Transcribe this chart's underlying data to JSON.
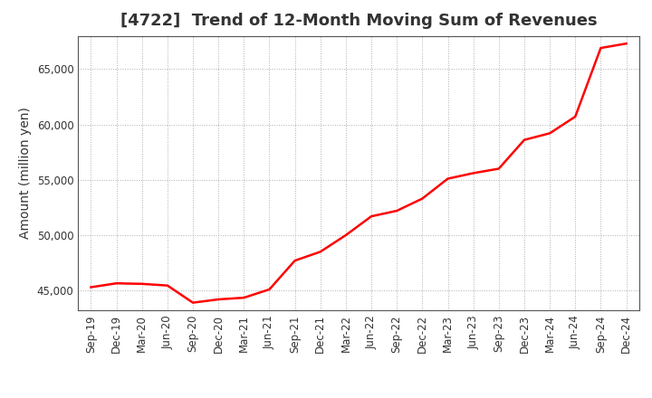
{
  "title": "[4722]  Trend of 12-Month Moving Sum of Revenues",
  "ylabel": "Amount (million yen)",
  "line_color": "#ff0000",
  "line_width": 1.8,
  "background_color": "#ffffff",
  "grid_color": "#999999",
  "x_labels": [
    "Sep-19",
    "Dec-19",
    "Mar-20",
    "Jun-20",
    "Sep-20",
    "Dec-20",
    "Mar-21",
    "Jun-21",
    "Sep-21",
    "Dec-21",
    "Mar-22",
    "Jun-22",
    "Sep-22",
    "Dec-22",
    "Mar-23",
    "Jun-23",
    "Sep-23",
    "Dec-23",
    "Mar-24",
    "Jun-24",
    "Sep-24",
    "Dec-24"
  ],
  "y_values": [
    45300,
    45650,
    45600,
    45450,
    43900,
    44200,
    44350,
    45100,
    47700,
    48500,
    50000,
    51700,
    52200,
    53300,
    55100,
    55600,
    56000,
    58600,
    59200,
    60700,
    66900,
    67300
  ],
  "ylim_min": 43200,
  "ylim_max": 68000,
  "yticks": [
    45000,
    50000,
    55000,
    60000,
    65000
  ],
  "title_fontsize": 13,
  "tick_fontsize": 8.5,
  "ylabel_fontsize": 10,
  "title_color": "#333333",
  "tick_color": "#333333"
}
